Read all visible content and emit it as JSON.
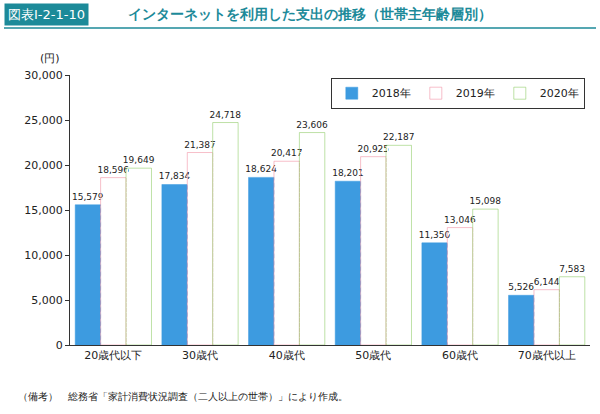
{
  "chart_data": {
    "type": "bar",
    "title": "インターネットを利用した支出の推移（世帯主年齢層別）",
    "annotations": [
      "図表Ⅰ-2-1-10",
      "（備考）　総務省「家計消費状況調査（二人以上の世帯）」により作成。"
    ],
    "y_label": "(円)",
    "categories": [
      "20歳代以下",
      "30歳代",
      "40歳代",
      "50歳代",
      "60歳代",
      "70歳代以上"
    ],
    "series": [
      {
        "name": "2018年",
        "color": "#3d9be0",
        "values": [
          15579,
          17834,
          18624,
          18201,
          11350,
          5526
        ],
        "value_labels": [
          "15,579",
          "17,834",
          "18,624",
          "18,201",
          "11,350",
          "5,526"
        ]
      },
      {
        "name": "2019年",
        "color": "#ee7f95",
        "values": [
          18596,
          21387,
          20417,
          20925,
          13046,
          6144
        ],
        "value_labels": [
          "18,596",
          "21,387",
          "20,417",
          "20,925",
          "13,046",
          "6,144"
        ]
      },
      {
        "name": "2020年",
        "color": "#7cc24e",
        "values": [
          19649,
          24718,
          23606,
          22187,
          15098,
          7583
        ],
        "value_labels": [
          "19,649",
          "24,718",
          "23,606",
          "22,187",
          "15,098",
          "7,583"
        ]
      }
    ],
    "ylim": [
      0,
      30000
    ],
    "yticks": [
      0,
      {
        "value": 5000,
        "label": "5,000"
      },
      {
        "value": 10000,
        "label": "10,000"
      },
      {
        "value": 15000,
        "label": "15,000"
      },
      {
        "value": 20000,
        "label": "20,000"
      },
      {
        "value": 25000,
        "label": "25,000"
      },
      {
        "value": 30000,
        "label": "30,000"
      }
    ],
    "grid": false,
    "legend": "upper right",
    "data_labels": true
  }
}
